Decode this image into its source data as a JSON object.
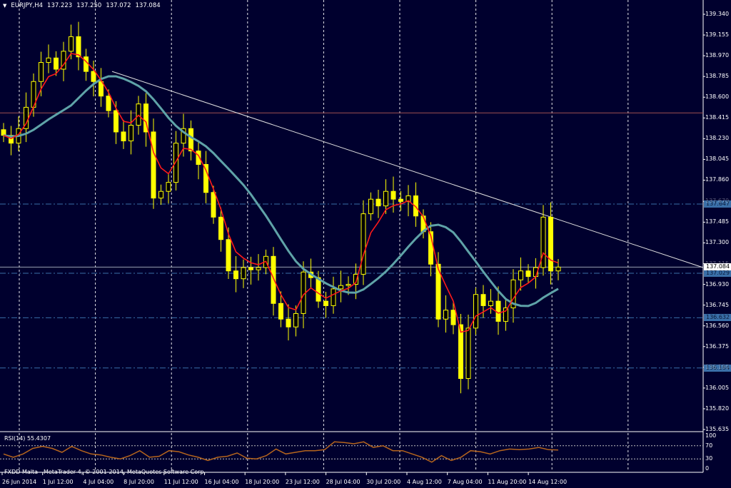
{
  "header": {
    "symbol": "EURJPY,H4",
    "open": "137.223",
    "high": "137.250",
    "low": "137.072",
    "close": "137.084"
  },
  "rsi": {
    "label": "RSI(14) 55.4307",
    "levels": [
      "100",
      "70",
      "30",
      "0"
    ]
  },
  "footer": {
    "copyright": "FXDD Malta - MetaTrader 4, © 2001-2014, MetaQuotes Software Corp."
  },
  "colors": {
    "background": "#00002e",
    "candles": "#ffff00",
    "fast_ma": "#ff1a1a",
    "slow_ma": "#5fa3a8",
    "rsi_line": "#b5651d",
    "level_label": "#3a6fa8",
    "resistance": "#a05050"
  },
  "chart_data": {
    "type": "candlestick",
    "symbol": "EURJPY",
    "timeframe": "H4",
    "price_axis": {
      "min": 135.635,
      "max": 139.34,
      "ticks": [
        "139.340",
        "139.155",
        "138.970",
        "138.785",
        "138.600",
        "138.415",
        "138.230",
        "138.045",
        "137.860",
        "137.670",
        "137.485",
        "137.300",
        "137.115",
        "136.930",
        "136.745",
        "136.560",
        "136.375",
        "136.190",
        "136.005",
        "135.820",
        "135.635"
      ]
    },
    "date_labels": [
      "26 Jun 2014",
      "1 Jul 12:00",
      "4 Jul 04:00",
      "8 Jul 20:00",
      "11 Jul 12:00",
      "16 Jul 04:00",
      "18 Jul 20:00",
      "23 Jul 12:00",
      "28 Jul 04:00",
      "30 Jul 20:00",
      "4 Aug 12:00",
      "7 Aug 04:00",
      "11 Aug 20:00",
      "14 Aug 12:00"
    ],
    "closes": [
      138.26,
      138.19,
      138.32,
      138.51,
      138.74,
      138.91,
      138.95,
      138.85,
      139.01,
      139.14,
      138.96,
      138.83,
      138.74,
      138.61,
      138.48,
      138.29,
      138.21,
      138.35,
      138.54,
      138.29,
      137.7,
      137.76,
      137.84,
      138.19,
      138.32,
      138.12,
      138.0,
      137.75,
      137.53,
      137.33,
      137.05,
      136.98,
      137.08,
      137.06,
      137.08,
      137.18,
      136.76,
      136.62,
      136.55,
      136.67,
      137.04,
      136.99,
      136.78,
      136.74,
      136.89,
      136.92,
      136.93,
      137.02,
      137.56,
      137.69,
      137.63,
      137.76,
      137.69,
      137.67,
      137.72,
      137.54,
      137.4,
      137.11,
      136.62,
      136.7,
      136.57,
      136.09,
      136.54,
      136.84,
      136.74,
      136.78,
      136.6,
      136.72,
      136.97,
      137.05,
      137.0,
      137.08,
      137.53,
      137.05,
      137.084
    ],
    "horizontal_levels": [
      {
        "price": 138.46,
        "style": "solid",
        "label": ""
      },
      {
        "price": 137.647,
        "style": "dashdot",
        "label": "137.647"
      },
      {
        "price": 137.029,
        "style": "dashdot",
        "label": "137.029"
      },
      {
        "price": 136.632,
        "style": "dashdot",
        "label": "136.632"
      },
      {
        "price": 136.184,
        "style": "dashdot",
        "label": "136.184"
      }
    ],
    "current_price": {
      "price": 137.084,
      "label": "137.084"
    },
    "trendline": {
      "start_price": 138.83,
      "end_price": 137.08
    },
    "rsi_values": [
      45,
      35,
      45,
      62,
      68,
      62,
      50,
      68,
      55,
      45,
      42,
      35,
      30,
      40,
      55,
      35,
      38,
      55,
      52,
      42,
      35,
      25,
      35,
      38,
      48,
      32,
      30,
      40,
      60,
      45,
      50,
      55,
      55,
      58,
      82,
      80,
      76,
      82,
      65,
      70,
      55,
      55,
      45,
      35,
      20,
      40,
      25,
      35,
      55,
      52,
      45,
      55,
      60,
      58,
      60,
      65,
      58,
      57
    ],
    "rsi_axis": {
      "min": 0,
      "max": 100
    }
  }
}
